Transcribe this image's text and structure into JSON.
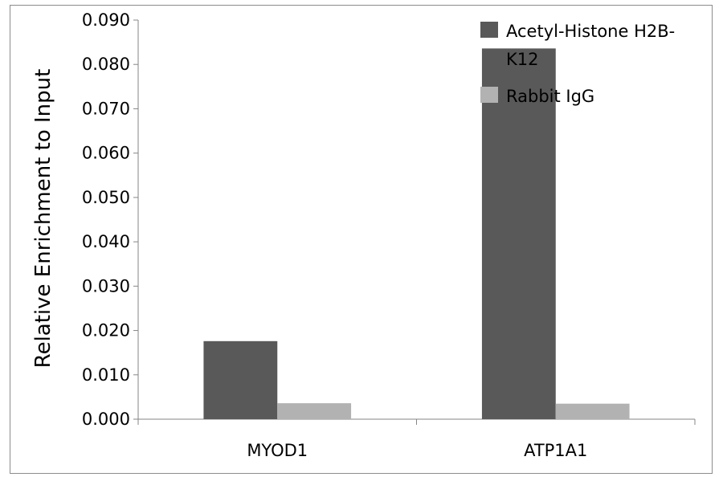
{
  "chart_data": {
    "type": "bar",
    "categories": [
      "MYOD1",
      "ATP1A1"
    ],
    "series": [
      {
        "name": "Acetyl-Histone H2B-K12",
        "values": [
          0.0176,
          0.0836
        ],
        "color": "#595959"
      },
      {
        "name": "Rabbit IgG",
        "values": [
          0.0036,
          0.0035
        ],
        "color": "#b2b2b2"
      }
    ],
    "ylabel": "Relative Enrichment to Input",
    "xlabel": "",
    "ylim": [
      0,
      0.09
    ],
    "yticks": [
      "0.000",
      "0.010",
      "0.020",
      "0.030",
      "0.040",
      "0.050",
      "0.060",
      "0.070",
      "0.080",
      "0.090"
    ],
    "legend": {
      "placement": "top-right",
      "entries": [
        {
          "lines": [
            "Acetyl-Histone H2B-",
            "K12"
          ]
        },
        {
          "lines": [
            "Rabbit IgG"
          ]
        }
      ]
    },
    "grid": false
  }
}
